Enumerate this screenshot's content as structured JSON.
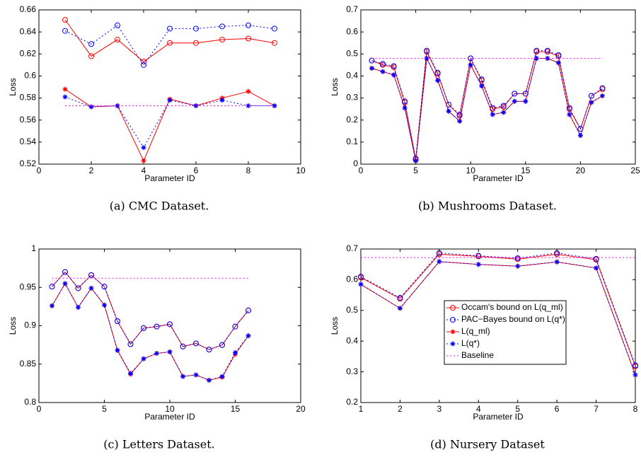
{
  "chart_data": [
    {
      "type": "line",
      "caption": "(a) CMC Dataset.",
      "x_label": "Parameter ID",
      "y_label": "Loss",
      "x": [
        1,
        2,
        3,
        4,
        5,
        6,
        7,
        8,
        9
      ],
      "xlim": [
        0,
        10
      ],
      "xticks": [
        0,
        2,
        4,
        6,
        8,
        10
      ],
      "ylim": [
        0.52,
        0.66
      ],
      "yticks": [
        0.52,
        0.54,
        0.56,
        0.58,
        0.6,
        0.62,
        0.64,
        0.66
      ],
      "series": [
        {
          "color": "#ff0000",
          "line_style": "solid",
          "marker": "circle",
          "values": [
            0.651,
            0.618,
            0.633,
            0.613,
            0.63,
            0.63,
            0.633,
            0.634,
            0.63
          ]
        },
        {
          "color": "#0000ff",
          "line_style": "dotted",
          "marker": "circle",
          "values": [
            0.641,
            0.629,
            0.646,
            0.61,
            0.643,
            0.643,
            0.645,
            0.646,
            0.643
          ]
        },
        {
          "color": "#ff0000",
          "line_style": "solid",
          "marker": "star",
          "values": [
            0.588,
            0.572,
            0.573,
            0.523,
            0.579,
            0.573,
            0.58,
            0.586,
            0.573
          ]
        },
        {
          "color": "#0000ff",
          "line_style": "dotted",
          "marker": "star",
          "values": [
            0.581,
            0.572,
            0.573,
            0.535,
            0.578,
            0.573,
            0.578,
            0.573,
            0.573
          ]
        },
        {
          "color": "#ff00ff",
          "line_style": "dotted",
          "marker": "none",
          "values": [
            0.573,
            0.573,
            0.573,
            0.573,
            0.573,
            0.573,
            0.573,
            0.573,
            0.573
          ]
        }
      ]
    },
    {
      "type": "line",
      "caption": "(b) Mushrooms Dataset.",
      "x_label": "Parameter ID",
      "y_label": "Loss",
      "x": [
        1,
        2,
        3,
        4,
        5,
        6,
        7,
        8,
        9,
        10,
        11,
        12,
        13,
        14,
        15,
        16,
        17,
        18,
        19,
        20,
        21,
        22
      ],
      "xlim": [
        0,
        25
      ],
      "xticks": [
        0,
        5,
        10,
        15,
        20,
        25
      ],
      "ylim": [
        0,
        0.7
      ],
      "yticks": [
        0,
        0.1,
        0.2,
        0.3,
        0.4,
        0.5,
        0.6,
        0.7
      ],
      "series": [
        {
          "color": "#ff0000",
          "line_style": "solid",
          "marker": "circle",
          "values": [
            0.47,
            0.45,
            0.44,
            0.28,
            0.02,
            0.51,
            0.41,
            0.27,
            0.22,
            0.48,
            0.38,
            0.25,
            0.26,
            0.32,
            0.32,
            0.51,
            0.51,
            0.49,
            0.25,
            0.16,
            0.31,
            0.34
          ]
        },
        {
          "color": "#0000ff",
          "line_style": "dotted",
          "marker": "circle",
          "values": [
            0.47,
            0.455,
            0.445,
            0.285,
            0.025,
            0.515,
            0.415,
            0.27,
            0.225,
            0.48,
            0.385,
            0.255,
            0.265,
            0.32,
            0.32,
            0.515,
            0.515,
            0.495,
            0.255,
            0.16,
            0.31,
            0.345
          ]
        },
        {
          "color": "#ff0000",
          "line_style": "solid",
          "marker": "star",
          "values": [
            0.435,
            0.42,
            0.405,
            0.255,
            0.015,
            0.48,
            0.38,
            0.24,
            0.195,
            0.45,
            0.355,
            0.225,
            0.235,
            0.285,
            0.285,
            0.48,
            0.48,
            0.46,
            0.225,
            0.13,
            0.28,
            0.31
          ]
        },
        {
          "color": "#0000ff",
          "line_style": "dotted",
          "marker": "star",
          "values": [
            0.435,
            0.42,
            0.405,
            0.255,
            0.015,
            0.48,
            0.38,
            0.24,
            0.195,
            0.45,
            0.355,
            0.225,
            0.235,
            0.285,
            0.285,
            0.48,
            0.48,
            0.46,
            0.225,
            0.13,
            0.28,
            0.31
          ]
        },
        {
          "color": "#ff00ff",
          "line_style": "dotted",
          "marker": "none",
          "values": [
            0.48,
            0.48,
            0.48,
            0.48,
            0.48,
            0.48,
            0.48,
            0.48,
            0.48,
            0.48,
            0.48,
            0.48,
            0.48,
            0.48,
            0.48,
            0.48,
            0.48,
            0.48,
            0.48,
            0.48,
            0.48,
            0.48
          ]
        }
      ]
    },
    {
      "type": "line",
      "caption": "(c) Letters Dataset.",
      "x_label": "Parameter ID",
      "y_label": "Loss",
      "x": [
        1,
        2,
        3,
        4,
        5,
        6,
        7,
        8,
        9,
        10,
        11,
        12,
        13,
        14,
        15,
        16
      ],
      "xlim": [
        0,
        20
      ],
      "xticks": [
        0,
        5,
        10,
        15,
        20
      ],
      "ylim": [
        0.8,
        1
      ],
      "yticks": [
        0.8,
        0.85,
        0.9,
        0.95,
        1
      ],
      "series": [
        {
          "color": "#ff0000",
          "line_style": "solid",
          "marker": "circle",
          "values": [
            0.951,
            0.97,
            0.949,
            0.966,
            0.951,
            0.906,
            0.876,
            0.897,
            0.899,
            0.902,
            0.873,
            0.877,
            0.869,
            0.875,
            0.899,
            0.92
          ]
        },
        {
          "color": "#0000ff",
          "line_style": "dotted",
          "marker": "circle",
          "values": [
            0.951,
            0.97,
            0.949,
            0.966,
            0.951,
            0.906,
            0.876,
            0.897,
            0.899,
            0.902,
            0.873,
            0.877,
            0.869,
            0.875,
            0.899,
            0.92
          ]
        },
        {
          "color": "#ff0000",
          "line_style": "solid",
          "marker": "star",
          "values": [
            0.926,
            0.955,
            0.924,
            0.949,
            0.927,
            0.868,
            0.837,
            0.857,
            0.864,
            0.866,
            0.834,
            0.836,
            0.829,
            0.833,
            0.863,
            0.887
          ]
        },
        {
          "color": "#0000ff",
          "line_style": "dotted",
          "marker": "star",
          "values": [
            0.926,
            0.955,
            0.924,
            0.949,
            0.927,
            0.868,
            0.838,
            0.857,
            0.864,
            0.866,
            0.834,
            0.836,
            0.829,
            0.834,
            0.865,
            0.887
          ]
        },
        {
          "color": "#ff00ff",
          "line_style": "dotted",
          "marker": "none",
          "values": [
            0.962,
            0.962,
            0.962,
            0.962,
            0.962,
            0.962,
            0.962,
            0.962,
            0.962,
            0.962,
            0.962,
            0.962,
            0.962,
            0.962,
            0.962,
            0.962
          ]
        }
      ]
    },
    {
      "type": "line",
      "caption": "(d) Nursery Dataset",
      "x_label": "Parameter ID",
      "y_label": "Loss",
      "x": [
        1,
        2,
        3,
        4,
        5,
        6,
        7,
        8
      ],
      "xlim": [
        1,
        8
      ],
      "xticks": [
        1,
        2,
        3,
        4,
        5,
        6,
        7,
        8
      ],
      "ylim": [
        0.2,
        0.7
      ],
      "yticks": [
        0.2,
        0.3,
        0.4,
        0.5,
        0.6,
        0.7
      ],
      "legend": "center",
      "series": [
        {
          "name": "Occam's bound on L(q_ml)",
          "color": "#ff0000",
          "line_style": "solid",
          "marker": "circle",
          "values": [
            0.607,
            0.538,
            0.683,
            0.676,
            0.667,
            0.683,
            0.665,
            0.318
          ]
        },
        {
          "name": "PAC−Bayes bound on L(q*)",
          "color": "#0000ff",
          "line_style": "dotted",
          "marker": "circle",
          "values": [
            0.61,
            0.541,
            0.687,
            0.678,
            0.67,
            0.687,
            0.668,
            0.321
          ]
        },
        {
          "name": "L(q_ml)",
          "color": "#ff0000",
          "line_style": "solid",
          "marker": "star",
          "values": [
            0.585,
            0.507,
            0.659,
            0.65,
            0.644,
            0.658,
            0.638,
            0.29
          ]
        },
        {
          "name": "L(q*)",
          "color": "#0000ff",
          "line_style": "dotted",
          "marker": "star",
          "values": [
            0.585,
            0.507,
            0.659,
            0.65,
            0.644,
            0.658,
            0.638,
            0.29
          ]
        },
        {
          "name": "Baseline",
          "color": "#ff00ff",
          "line_style": "dotted",
          "marker": "none",
          "values": [
            0.672,
            0.672,
            0.672,
            0.672,
            0.672,
            0.672,
            0.672,
            0.672
          ]
        }
      ]
    }
  ]
}
